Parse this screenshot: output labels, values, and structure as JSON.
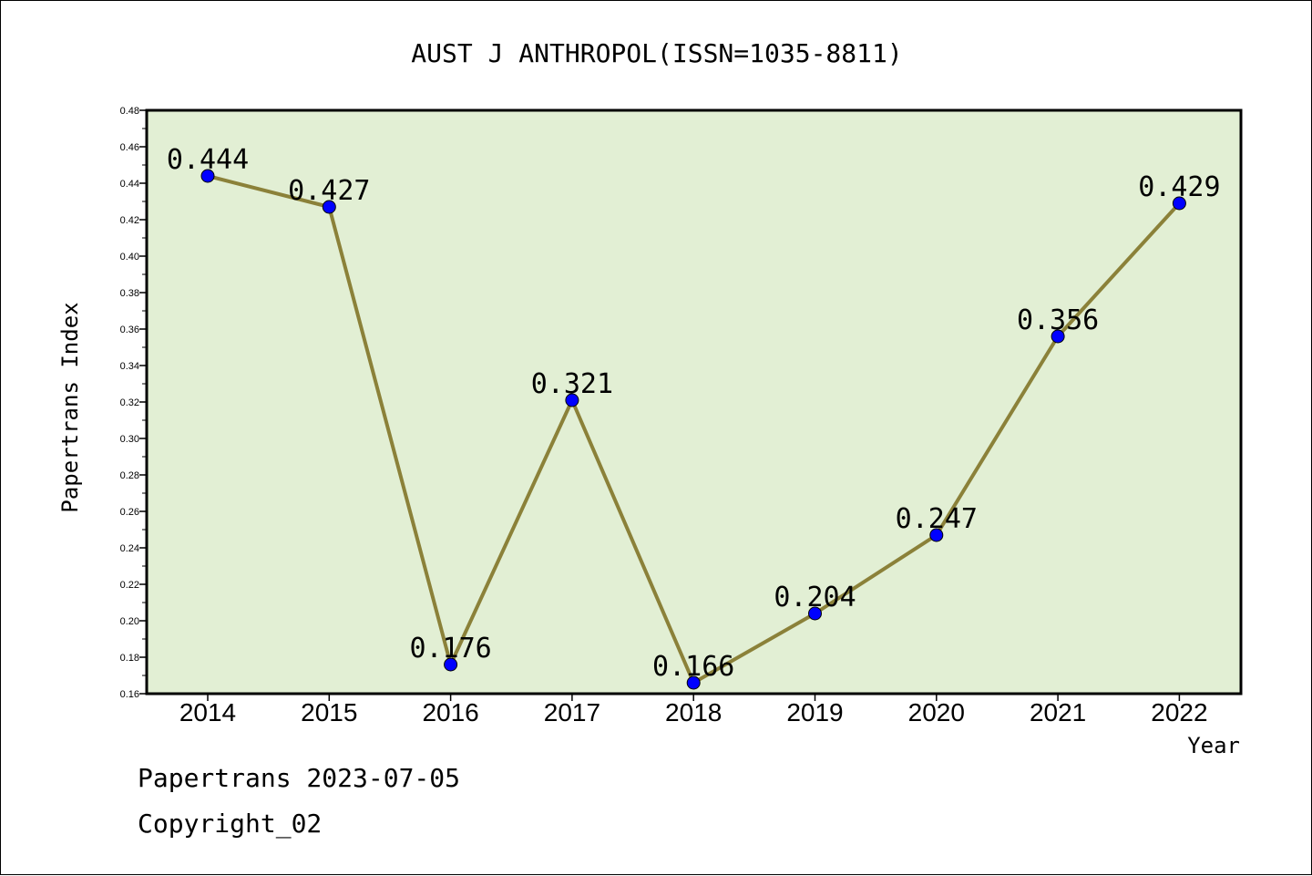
{
  "footer": {
    "line1": "Papertrans 2023-07-05",
    "line2": "Copyright_02"
  },
  "chart_data": {
    "type": "line",
    "title": "AUST J ANTHROPOL(ISSN=1035-8811)",
    "xlabel": "Year",
    "ylabel": "Papertrans Index",
    "categories": [
      "2014",
      "2015",
      "2016",
      "2017",
      "2018",
      "2019",
      "2020",
      "2021",
      "2022"
    ],
    "values": [
      0.444,
      0.427,
      0.176,
      0.321,
      0.166,
      0.204,
      0.247,
      0.356,
      0.429
    ],
    "data_labels": [
      "0.444",
      "0.427",
      "0.176",
      "0.321",
      "0.166",
      "0.204",
      "0.247",
      "0.356",
      "0.429"
    ],
    "ylim": [
      0.16,
      0.48
    ],
    "yticks": [
      "0.16",
      "0.18",
      "0.20",
      "0.22",
      "0.24",
      "0.26",
      "0.28",
      "0.30",
      "0.32",
      "0.34",
      "0.36",
      "0.38",
      "0.40",
      "0.42",
      "0.44",
      "0.46",
      "0.48"
    ],
    "grid": false,
    "colors": {
      "plot_background": "#e2efd4",
      "line": "#8b8139",
      "marker": "#0000ff"
    }
  }
}
